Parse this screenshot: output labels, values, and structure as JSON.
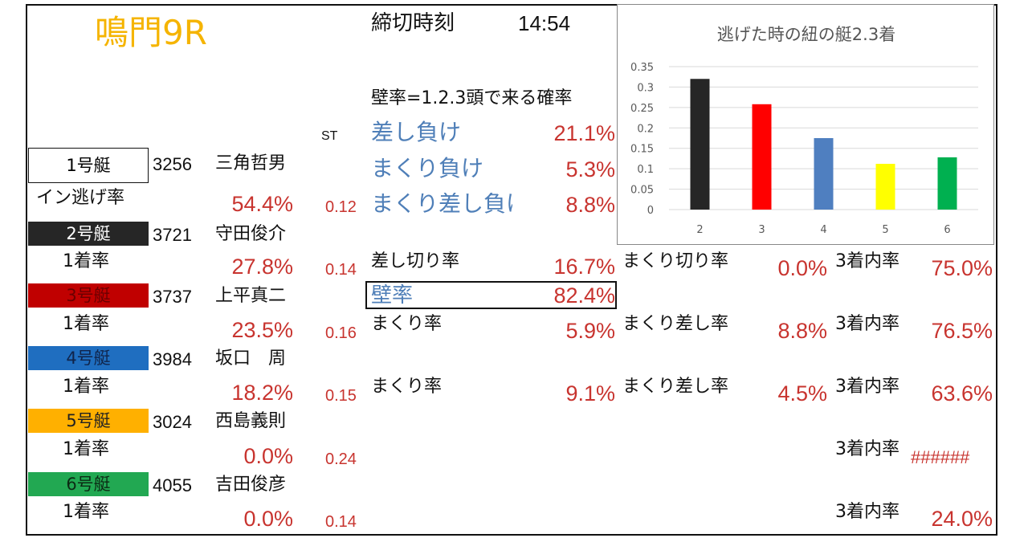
{
  "header": {
    "race": "鳴門9R",
    "deadline_label": "締切時刻",
    "deadline_time": "14:54",
    "wall_caption": "壁率=1.2.3頭で来る確率",
    "st_label": "ST"
  },
  "colors": {
    "title": "#f5b400",
    "red": "#c8342f",
    "blue": "#4f7fb8",
    "boat1": "#ffffff",
    "boat2": "#262626",
    "boat3": "#c00000",
    "boat4": "#1f6ec0",
    "boat5": "#ffb000",
    "boat6": "#22a852"
  },
  "loss": [
    {
      "label": "差し負け",
      "value": "21.1%"
    },
    {
      "label": "まくり負け",
      "value": "5.3%"
    },
    {
      "label": "まくり差し負け",
      "value": "8.8%"
    }
  ],
  "boats": [
    {
      "label": "1号艇",
      "reg": "3256",
      "name": "三角哲男",
      "rate_label": "イン逃げ率",
      "rate": "54.4%",
      "st": "0.12"
    },
    {
      "label": "2号艇",
      "reg": "3721",
      "name": "守田俊介",
      "rate_label": "1着率",
      "rate": "27.8%",
      "st": "0.14"
    },
    {
      "label": "3号艇",
      "reg": "3737",
      "name": "上平真二",
      "rate_label": "1着率",
      "rate": "23.5%",
      "st": "0.16"
    },
    {
      "label": "4号艇",
      "reg": "3984",
      "name": "坂口　周",
      "rate_label": "1着率",
      "rate": "18.2%",
      "st": "0.15"
    },
    {
      "label": "5号艇",
      "reg": "3024",
      "name": "西島義則",
      "rate_label": "1着率",
      "rate": "0.0%",
      "st": "0.24"
    },
    {
      "label": "6号艇",
      "reg": "4055",
      "name": "吉田俊彦",
      "rate_label": "1着率",
      "rate": "0.0%",
      "st": "0.14"
    }
  ],
  "stats": {
    "row2": {
      "a_label": "差し切り率",
      "a": "16.7%",
      "b_label": "まくり切り率",
      "b": "0.0%",
      "c_label": "3着内率",
      "c": "75.0%"
    },
    "wall": {
      "label": "壁率",
      "value": "82.4%"
    },
    "row3": {
      "a_label": "まくり率",
      "a": "5.9%",
      "b_label": "まくり差し率",
      "b": "8.8%",
      "c_label": "3着内率",
      "c": "76.5%"
    },
    "row4": {
      "a_label": "まくり率",
      "a": "9.1%",
      "b_label": "まくり差し率",
      "b": "4.5%",
      "c_label": "3着内率",
      "c": "63.6%"
    },
    "row5": {
      "c_label": "3着内率",
      "c": "######"
    },
    "row6": {
      "c_label": "3着内率",
      "c": "24.0%"
    }
  },
  "chart_data": {
    "type": "bar",
    "title": "逃げた時の紐の艇2.3着",
    "categories": [
      "2",
      "3",
      "4",
      "5",
      "6"
    ],
    "values": [
      0.32,
      0.258,
      0.175,
      0.112,
      0.128
    ],
    "colors": [
      "#262626",
      "#ff0000",
      "#4f7fc0",
      "#ffff00",
      "#00b050"
    ],
    "ylim": [
      0,
      0.35
    ],
    "yticks": [
      "0",
      "0.05",
      "0.1",
      "0.15",
      "0.2",
      "0.25",
      "0.3",
      "0.35"
    ],
    "grid": true,
    "legend": "none"
  }
}
